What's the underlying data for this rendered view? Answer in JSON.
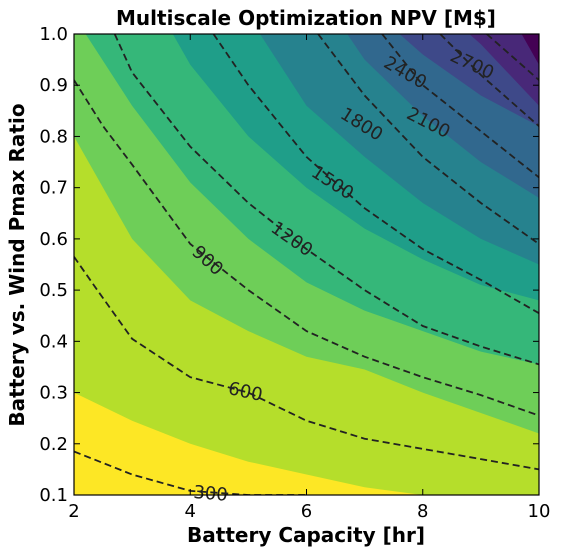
{
  "chart_data": {
    "type": "contour",
    "title": "Multiscale Optimization NPV [M$]",
    "xlabel": "Battery Capacity [hr]",
    "ylabel": "Battery vs. Wind Pmax Ratio",
    "xlim": [
      2,
      10
    ],
    "ylim": [
      0.1,
      1.0
    ],
    "x_ticks": [
      2,
      4,
      6,
      8,
      10
    ],
    "x_tick_labels": [
      "2",
      "4",
      "6",
      "8",
      "10"
    ],
    "y_ticks": [
      0.1,
      0.2,
      0.3,
      0.4,
      0.5,
      0.6,
      0.7,
      0.8,
      0.9,
      1.0
    ],
    "y_tick_labels": [
      "0.1",
      "0.2",
      "0.3",
      "0.4",
      "0.5",
      "0.6",
      "0.7",
      "0.8",
      "0.9",
      "1.0"
    ],
    "levels": [
      300,
      600,
      900,
      1200,
      1500,
      1800,
      2100,
      2400,
      2700
    ],
    "contour_labels": [
      {
        "text": "300",
        "x": 4.35,
        "y": 0.103,
        "angle": 5
      },
      {
        "text": "600",
        "x": 4.95,
        "y": 0.302,
        "angle": 12
      },
      {
        "text": "900",
        "x": 4.3,
        "y": 0.558,
        "angle": 42
      },
      {
        "text": "1200",
        "x": 5.75,
        "y": 0.6,
        "angle": 35
      },
      {
        "text": "1500",
        "x": 6.45,
        "y": 0.71,
        "angle": 33
      },
      {
        "text": "1800",
        "x": 6.95,
        "y": 0.824,
        "angle": 32
      },
      {
        "text": "2100",
        "x": 8.1,
        "y": 0.827,
        "angle": 27
      },
      {
        "text": "2400",
        "x": 7.7,
        "y": 0.925,
        "angle": 30
      },
      {
        "text": "2700",
        "x": 8.85,
        "y": 0.941,
        "angle": 25
      }
    ],
    "colors": [
      "#fde725",
      "#b5de2b",
      "#6ece58",
      "#35b779",
      "#1f9e89",
      "#26828e",
      "#31688e",
      "#3e4989",
      "#482878",
      "#440154"
    ],
    "line_color": "#222222",
    "grid": false,
    "contour_lines": [
      {
        "level": 300,
        "points": [
          [
            2,
            0.185
          ],
          [
            3,
            0.14
          ],
          [
            4,
            0.108
          ],
          [
            5,
            0.094
          ],
          [
            6,
            0.09
          ]
        ]
      },
      {
        "level": 600,
        "points": [
          [
            2,
            0.565
          ],
          [
            2.4,
            0.5
          ],
          [
            3,
            0.405
          ],
          [
            4,
            0.33
          ],
          [
            5,
            0.3
          ],
          [
            6,
            0.245
          ],
          [
            7,
            0.21
          ],
          [
            8,
            0.19
          ],
          [
            9,
            0.17
          ],
          [
            10,
            0.15
          ]
        ]
      },
      {
        "level": 900,
        "points": [
          [
            2,
            0.91
          ],
          [
            2.5,
            0.82
          ],
          [
            3,
            0.745
          ],
          [
            4,
            0.59
          ],
          [
            5,
            0.5
          ],
          [
            6,
            0.42
          ],
          [
            7,
            0.37
          ],
          [
            8,
            0.33
          ],
          [
            9,
            0.295
          ],
          [
            10,
            0.255
          ]
        ]
      },
      {
        "level": 1200,
        "points": [
          [
            2.7,
            1.0
          ],
          [
            3,
            0.925
          ],
          [
            4,
            0.78
          ],
          [
            5,
            0.67
          ],
          [
            6,
            0.58
          ],
          [
            7,
            0.5
          ],
          [
            8,
            0.43
          ],
          [
            9,
            0.39
          ],
          [
            10,
            0.355
          ]
        ]
      },
      {
        "level": 1500,
        "points": [
          [
            4.4,
            1.0
          ],
          [
            5,
            0.9
          ],
          [
            6,
            0.76
          ],
          [
            7,
            0.66
          ],
          [
            8,
            0.58
          ],
          [
            9,
            0.52
          ],
          [
            10,
            0.455
          ]
        ]
      },
      {
        "level": 1800,
        "points": [
          [
            6.2,
            1.0
          ],
          [
            7,
            0.88
          ],
          [
            8,
            0.76
          ],
          [
            9,
            0.67
          ],
          [
            10,
            0.59
          ]
        ]
      },
      {
        "level": 2100,
        "points": [
          [
            7.3,
            1.0
          ],
          [
            8,
            0.9
          ],
          [
            9,
            0.81
          ],
          [
            10,
            0.72
          ]
        ]
      },
      {
        "level": 2400,
        "points": [
          [
            8.3,
            1.0
          ],
          [
            9,
            0.92
          ],
          [
            10,
            0.82
          ]
        ]
      },
      {
        "level": 2700,
        "points": [
          [
            9.1,
            1.0
          ],
          [
            10,
            0.91
          ]
        ]
      }
    ],
    "filled_regions": [
      {
        "band": "< 300",
        "color_index": 0,
        "boundary": [
          [
            2,
            0.3
          ],
          [
            3,
            0.245
          ],
          [
            4,
            0.2
          ],
          [
            5,
            0.165
          ],
          [
            6,
            0.14
          ],
          [
            7,
            0.115
          ],
          [
            8,
            0.1
          ]
        ]
      },
      {
        "band": "300-600",
        "color_index": 1,
        "boundary": [
          [
            2,
            0.8
          ],
          [
            2.5,
            0.7
          ],
          [
            3,
            0.6
          ],
          [
            4,
            0.48
          ],
          [
            5,
            0.42
          ],
          [
            6,
            0.37
          ],
          [
            7,
            0.345
          ],
          [
            8,
            0.3
          ],
          [
            9,
            0.26
          ],
          [
            10,
            0.22
          ]
        ]
      },
      {
        "band": "600-900",
        "color_index": 2,
        "boundary": [
          [
            2.2,
            1.0
          ],
          [
            3,
            0.86
          ],
          [
            4,
            0.71
          ],
          [
            5,
            0.6
          ],
          [
            6,
            0.515
          ],
          [
            7,
            0.46
          ],
          [
            8,
            0.42
          ],
          [
            9,
            0.38
          ],
          [
            10,
            0.355
          ]
        ]
      },
      {
        "band": "900-1200",
        "color_index": 3,
        "boundary": [
          [
            3.7,
            1.0
          ],
          [
            4,
            0.94
          ],
          [
            5,
            0.8
          ],
          [
            6,
            0.7
          ],
          [
            7,
            0.62
          ],
          [
            8,
            0.56
          ],
          [
            9,
            0.51
          ],
          [
            10,
            0.48
          ]
        ]
      },
      {
        "band": "1200-1500",
        "color_index": 4,
        "boundary": [
          [
            5.2,
            1.0
          ],
          [
            6,
            0.86
          ],
          [
            7,
            0.76
          ],
          [
            8,
            0.67
          ],
          [
            9,
            0.6
          ],
          [
            10,
            0.55
          ]
        ]
      },
      {
        "band": "1500-1800",
        "color_index": 5,
        "boundary": [
          [
            6.7,
            1.0
          ],
          [
            7,
            0.95
          ],
          [
            8,
            0.84
          ],
          [
            9,
            0.75
          ],
          [
            10,
            0.68
          ]
        ]
      },
      {
        "band": "1800-2100",
        "color_index": 6,
        "boundary": [
          [
            7.6,
            1.0
          ],
          [
            8,
            0.96
          ],
          [
            9,
            0.88
          ],
          [
            10,
            0.82
          ]
        ]
      },
      {
        "band": "2100-2400",
        "color_index": 7,
        "boundary": [
          [
            8.8,
            1.0
          ],
          [
            9,
            0.98
          ],
          [
            10,
            0.86
          ]
        ]
      },
      {
        "band": "> 2400",
        "color_index": 8,
        "boundary": [
          [
            9.7,
            1.0
          ],
          [
            10,
            0.94
          ]
        ]
      }
    ]
  }
}
